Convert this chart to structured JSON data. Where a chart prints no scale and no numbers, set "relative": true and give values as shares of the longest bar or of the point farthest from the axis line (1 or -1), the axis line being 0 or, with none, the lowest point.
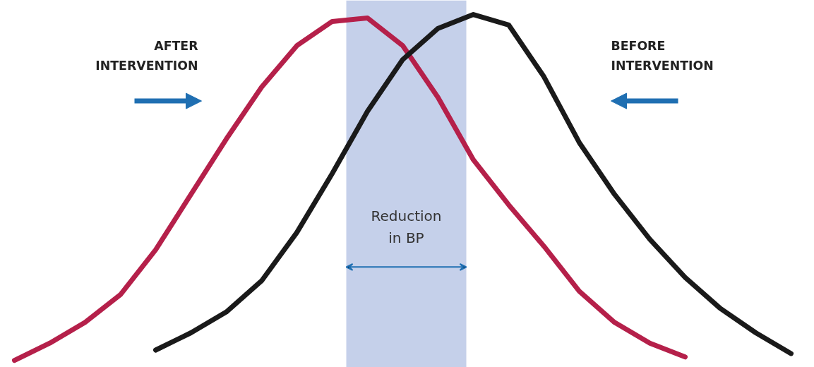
{
  "chart_data": {
    "type": "line",
    "relative": true,
    "grid": false,
    "marker": "none",
    "line_style": "solid",
    "categories": [
      null,
      null,
      null,
      null,
      null,
      null,
      null,
      null,
      null,
      null,
      null,
      null,
      null,
      null,
      null,
      null,
      null,
      null,
      null,
      null,
      null,
      null,
      null
    ],
    "series": [
      {
        "color": "#b5204a",
        "values": [
          0,
          0.05,
          0.11,
          0.19,
          0.32,
          0.48,
          0.64,
          0.79,
          0.91,
          0.98,
          0.99,
          0.91,
          0.76,
          0.58,
          0.45,
          0.33,
          0.2,
          0.11,
          0.05,
          0.01,
          null,
          null,
          null
        ]
      },
      {
        "color": "#1a1a1a",
        "values": [
          null,
          null,
          null,
          null,
          0.03,
          0.08,
          0.14,
          0.23,
          0.37,
          0.54,
          0.72,
          0.87,
          0.96,
          1.0,
          0.97,
          0.82,
          0.63,
          0.48,
          0.35,
          0.24,
          0.15,
          0.08,
          0.02
        ]
      }
    ],
    "annotations": [
      "AFTER\nINTERVENTION",
      "BEFORE\nINTERVENTION",
      "Reduction\nin BP"
    ]
  }
}
